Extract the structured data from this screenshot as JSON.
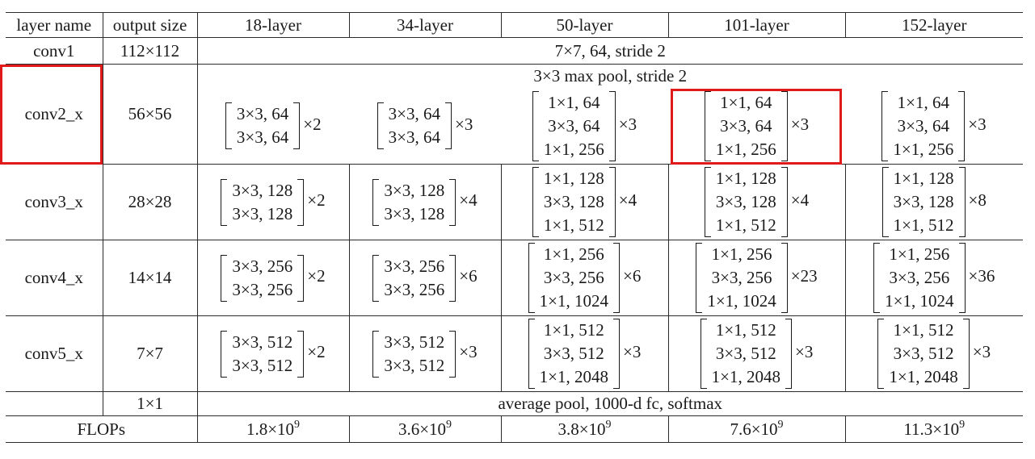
{
  "header": [
    "layer name",
    "output size",
    "18-layer",
    "34-layer",
    "50-layer",
    "101-layer",
    "152-layer"
  ],
  "conv1": {
    "name": "conv1",
    "size": "112×112",
    "spec": "7×7, 64, stride 2"
  },
  "pool": {
    "spec": "3×3 max pool, stride 2"
  },
  "stages": [
    {
      "name": "conv2_x",
      "size": "56×56",
      "cells": [
        {
          "ops": [
            "3×3, 64",
            "3×3, 64"
          ],
          "times": "×2"
        },
        {
          "ops": [
            "3×3, 64",
            "3×3, 64"
          ],
          "times": "×3"
        },
        {
          "ops": [
            "1×1, 64",
            "3×3, 64",
            "1×1, 256"
          ],
          "times": "×3"
        },
        {
          "ops": [
            "1×1, 64",
            "3×3, 64",
            "1×1, 256"
          ],
          "times": "×3"
        },
        {
          "ops": [
            "1×1, 64",
            "3×3, 64",
            "1×1, 256"
          ],
          "times": "×3"
        }
      ]
    },
    {
      "name": "conv3_x",
      "size": "28×28",
      "cells": [
        {
          "ops": [
            "3×3, 128",
            "3×3, 128"
          ],
          "times": "×2"
        },
        {
          "ops": [
            "3×3, 128",
            "3×3, 128"
          ],
          "times": "×4"
        },
        {
          "ops": [
            "1×1, 128",
            "3×3, 128",
            "1×1, 512"
          ],
          "times": "×4"
        },
        {
          "ops": [
            "1×1, 128",
            "3×3, 128",
            "1×1, 512"
          ],
          "times": "×4"
        },
        {
          "ops": [
            "1×1, 128",
            "3×3, 128",
            "1×1, 512"
          ],
          "times": "×8"
        }
      ]
    },
    {
      "name": "conv4_x",
      "size": "14×14",
      "cells": [
        {
          "ops": [
            "3×3, 256",
            "3×3, 256"
          ],
          "times": "×2"
        },
        {
          "ops": [
            "3×3, 256",
            "3×3, 256"
          ],
          "times": "×6"
        },
        {
          "ops": [
            "1×1, 256",
            "3×3, 256",
            "1×1, 1024"
          ],
          "times": "×6"
        },
        {
          "ops": [
            "1×1, 256",
            "3×3, 256",
            "1×1, 1024"
          ],
          "times": "×23"
        },
        {
          "ops": [
            "1×1, 256",
            "3×3, 256",
            "1×1, 1024"
          ],
          "times": "×36"
        }
      ]
    },
    {
      "name": "conv5_x",
      "size": "7×7",
      "cells": [
        {
          "ops": [
            "3×3, 512",
            "3×3, 512"
          ],
          "times": "×2"
        },
        {
          "ops": [
            "3×3, 512",
            "3×3, 512"
          ],
          "times": "×3"
        },
        {
          "ops": [
            "1×1, 512",
            "3×3, 512",
            "1×1, 2048"
          ],
          "times": "×3"
        },
        {
          "ops": [
            "1×1, 512",
            "3×3, 512",
            "1×1, 2048"
          ],
          "times": "×3"
        },
        {
          "ops": [
            "1×1, 512",
            "3×3, 512",
            "1×1, 2048"
          ],
          "times": "×3"
        }
      ]
    }
  ],
  "final": {
    "size": "1×1",
    "spec": "average pool, 1000-d fc, softmax"
  },
  "flops": {
    "label": "FLOPs",
    "values": [
      {
        "base": "1.8×10",
        "exp": "9"
      },
      {
        "base": "3.6×10",
        "exp": "9"
      },
      {
        "base": "3.8×10",
        "exp": "9"
      },
      {
        "base": "7.6×10",
        "exp": "9"
      },
      {
        "base": "11.3×10",
        "exp": "9"
      }
    ]
  },
  "highlight_color": "#e0191b"
}
